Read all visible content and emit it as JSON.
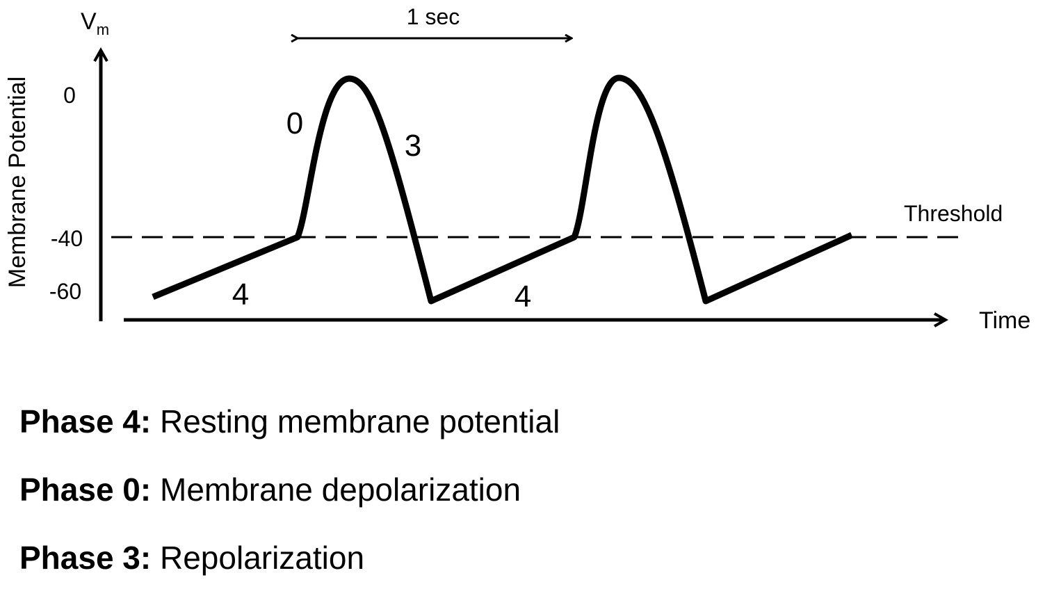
{
  "diagram": {
    "y_axis_symbol": "V",
    "y_axis_subscript": "m",
    "y_axis_label": "Membrane Potential",
    "x_axis_label": "Time",
    "y_ticks": [
      "0",
      "-40",
      "-60"
    ],
    "threshold_label": "Threshold",
    "period_label": "1 sec",
    "phase_labels": [
      "0",
      "3",
      "4",
      "4"
    ]
  },
  "legend": [
    {
      "phase": "Phase 4:",
      "description": "Resting membrane potential"
    },
    {
      "phase": "Phase 0:",
      "description": "Membrane depolarization"
    },
    {
      "phase": "Phase 3:",
      "description": "Repolarization"
    }
  ]
}
